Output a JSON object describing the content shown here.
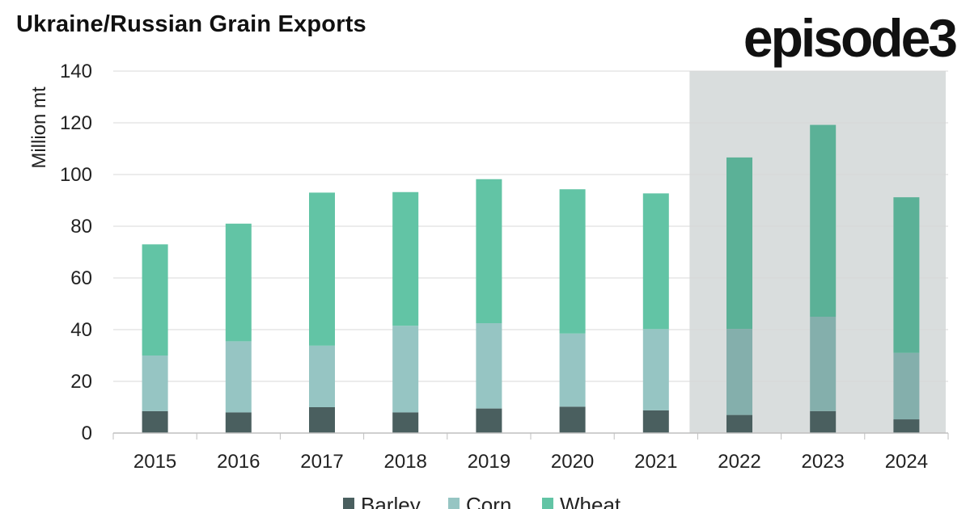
{
  "title": "Ukraine/Russian Grain Exports",
  "brand": "episode3",
  "colors": {
    "barley": "#4a5f5f",
    "corn": "#96c5c3",
    "wheat": "#62c4a5",
    "barley_shaded": "#4a5f5f",
    "corn_shaded": "#84afac",
    "wheat_shaded": "#5bb197",
    "shade": "#d9dddd",
    "grid": "#d8d8d8"
  },
  "chart_data": {
    "type": "bar",
    "stacked": true,
    "categories": [
      "2015",
      "2016",
      "2017",
      "2018",
      "2019",
      "2020",
      "2021",
      "2022",
      "2023",
      "2024"
    ],
    "series": [
      {
        "name": "Barley",
        "values": [
          8.5,
          8,
          10,
          8,
          9.5,
          10.2,
          8.8,
          7,
          8.5,
          5.3
        ]
      },
      {
        "name": "Corn",
        "values": [
          21.5,
          27.5,
          23.8,
          33.5,
          33,
          28.3,
          31.4,
          33.3,
          36.5,
          25.7
        ]
      },
      {
        "name": "Wheat",
        "values": [
          43,
          45.5,
          59.2,
          51.7,
          55.7,
          55.8,
          52.5,
          66.3,
          74.2,
          60.2
        ]
      }
    ],
    "ylabel": "Million mt",
    "xlabel": "",
    "ylim": [
      0,
      140
    ],
    "yticks": [
      0,
      20,
      40,
      60,
      80,
      100,
      120,
      140
    ],
    "grid": true,
    "highlighted_categories": [
      "2022",
      "2023",
      "2024"
    ],
    "legend_position": "bottom"
  }
}
